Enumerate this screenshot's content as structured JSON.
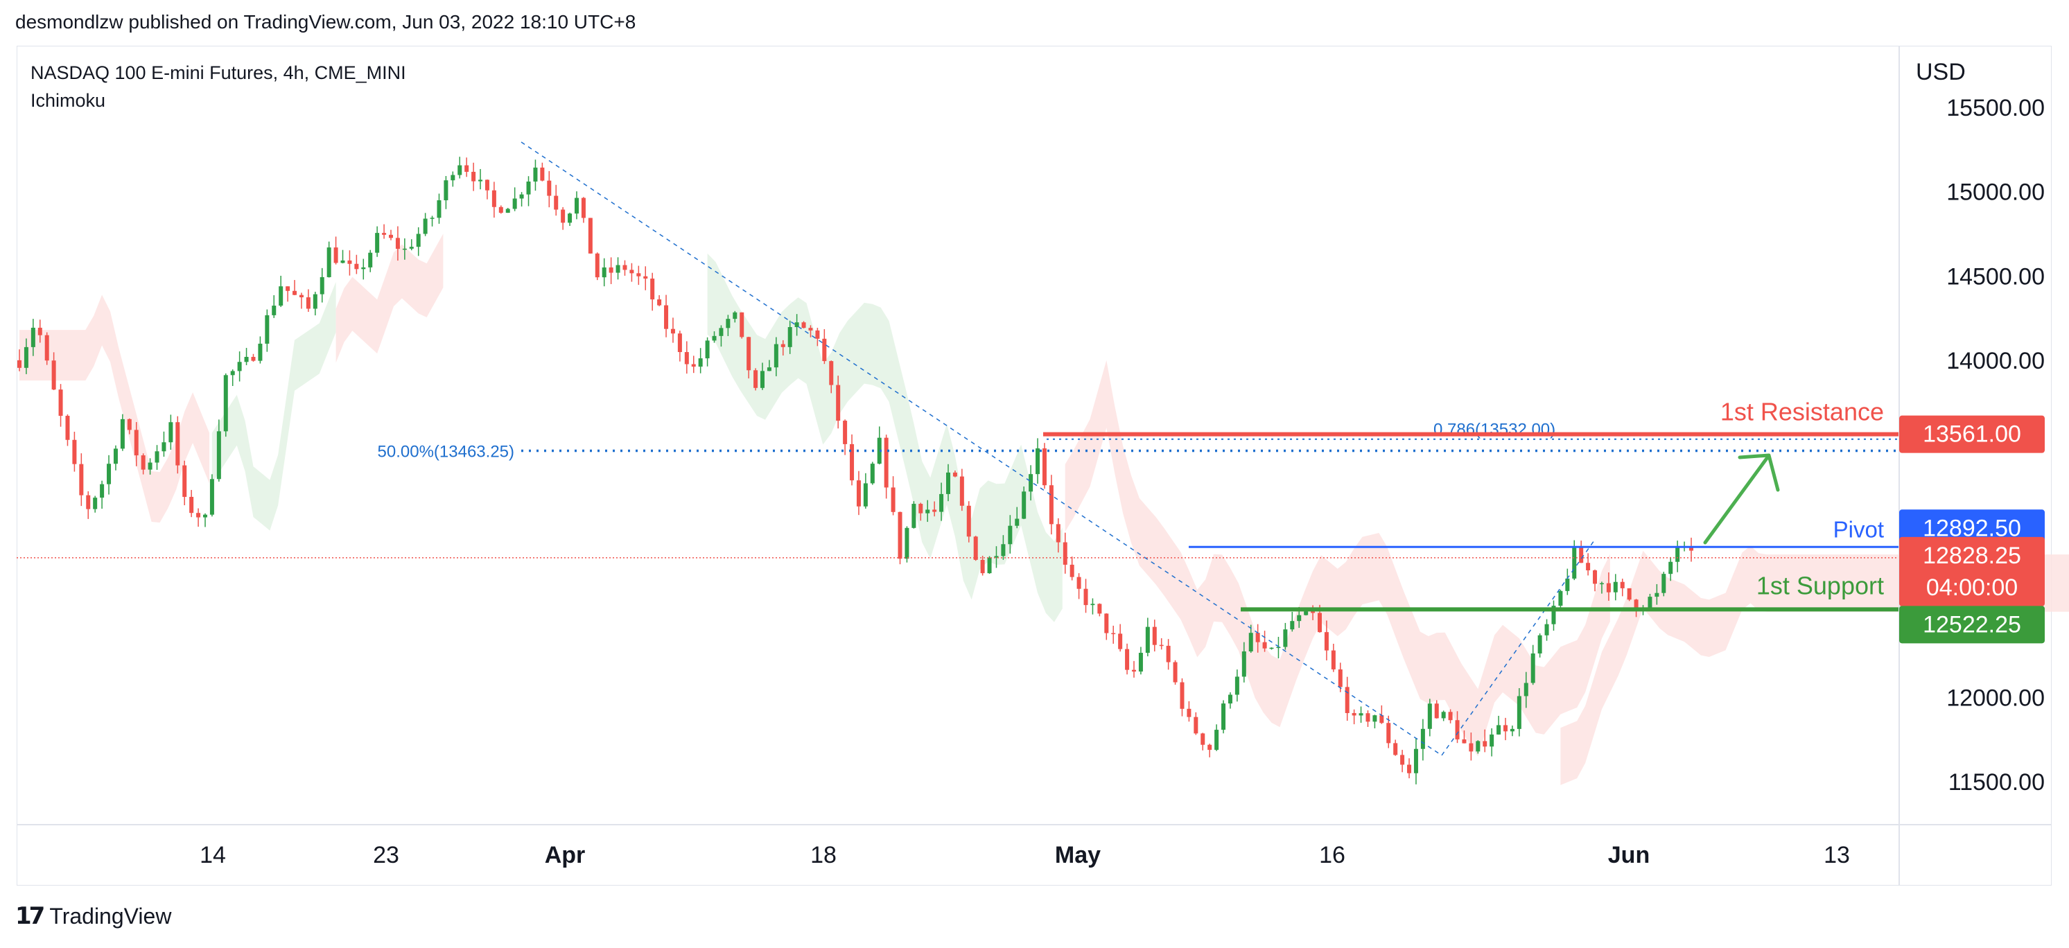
{
  "header": {
    "publish_info": "desmondlzw published on TradingView.com, Jun 03, 2022 18:10 UTC+8"
  },
  "brand": {
    "logo_glyph": "17",
    "name": "TradingView"
  },
  "colors": {
    "up": "#2e9e47",
    "down": "#f0524b",
    "resistance": "#f0524b",
    "support": "#3b9b3b",
    "pivot": "#2962ff",
    "fib": "#1f6fce",
    "cloud_bull": "#e3f2e4",
    "cloud_bear": "#fde3e2",
    "price_tag": "#f0524b",
    "pivot_tag": "#2962ff",
    "support_tag": "#3b9b3b"
  },
  "chart_data": {
    "type": "candlestick",
    "symbol_title": "NASDAQ 100 E-mini Futures, 4h, CME_MINI",
    "indicator": "Ichimoku",
    "currency": "USD",
    "y_ticks": [
      "15500.00",
      "15000.00",
      "14500.00",
      "14000.00",
      "12000.00",
      "11500.00"
    ],
    "ylim": [
      11250,
      15650
    ],
    "x_ticks": [
      {
        "label": "14",
        "bold": false
      },
      {
        "label": "23",
        "bold": false
      },
      {
        "label": "Apr",
        "bold": true
      },
      {
        "label": "18",
        "bold": false
      },
      {
        "label": "May",
        "bold": true
      },
      {
        "label": "16",
        "bold": false
      },
      {
        "label": "Jun",
        "bold": true
      },
      {
        "label": "13",
        "bold": false
      }
    ],
    "levels": {
      "resistance": {
        "label": "1st Resistance",
        "value": 13561.0,
        "tag": "13561.00"
      },
      "pivot": {
        "label": "Pivot",
        "value": 12892.5,
        "tag": "12892.50"
      },
      "support": {
        "label": "1st Support",
        "value": 12522.25,
        "tag": "12522.25"
      }
    },
    "current_price": {
      "value": 12828.25,
      "tag": "12828.25",
      "countdown": "04:00:00"
    },
    "fib_levels": [
      {
        "label": "50.00%(13463.25)",
        "value": 13463.25
      },
      {
        "label": "0.786(13532.00)",
        "value": 13532.0
      }
    ],
    "path": [
      {
        "t": 0,
        "p": 14000
      },
      {
        "t": 12,
        "p": 14250
      },
      {
        "t": 22,
        "p": 13900
      },
      {
        "t": 35,
        "p": 13500
      },
      {
        "t": 48,
        "p": 13100
      },
      {
        "t": 62,
        "p": 13300
      },
      {
        "t": 75,
        "p": 13650
      },
      {
        "t": 90,
        "p": 13350
      },
      {
        "t": 110,
        "p": 13600
      },
      {
        "t": 120,
        "p": 13150
      },
      {
        "t": 135,
        "p": 13050
      },
      {
        "t": 150,
        "p": 13900
      },
      {
        "t": 168,
        "p": 14000
      },
      {
        "t": 190,
        "p": 14450
      },
      {
        "t": 210,
        "p": 14300
      },
      {
        "t": 225,
        "p": 14650
      },
      {
        "t": 245,
        "p": 14500
      },
      {
        "t": 262,
        "p": 14750
      },
      {
        "t": 280,
        "p": 14650
      },
      {
        "t": 300,
        "p": 14850
      },
      {
        "t": 318,
        "p": 15200
      },
      {
        "t": 330,
        "p": 15100
      },
      {
        "t": 345,
        "p": 14900
      },
      {
        "t": 360,
        "p": 14950
      },
      {
        "t": 375,
        "p": 15150
      },
      {
        "t": 385,
        "p": 15000
      },
      {
        "t": 395,
        "p": 14850
      },
      {
        "t": 405,
        "p": 14950
      },
      {
        "t": 420,
        "p": 14500
      },
      {
        "t": 440,
        "p": 14550
      },
      {
        "t": 455,
        "p": 14450
      },
      {
        "t": 470,
        "p": 14200
      },
      {
        "t": 490,
        "p": 13950
      },
      {
        "t": 505,
        "p": 14150
      },
      {
        "t": 520,
        "p": 14250
      },
      {
        "t": 535,
        "p": 13800
      },
      {
        "t": 548,
        "p": 14050
      },
      {
        "t": 565,
        "p": 14200
      },
      {
        "t": 580,
        "p": 14150
      },
      {
        "t": 598,
        "p": 13550
      },
      {
        "t": 610,
        "p": 13100
      },
      {
        "t": 625,
        "p": 13500
      },
      {
        "t": 640,
        "p": 12850
      },
      {
        "t": 650,
        "p": 13150
      },
      {
        "t": 665,
        "p": 13100
      },
      {
        "t": 678,
        "p": 13350
      },
      {
        "t": 690,
        "p": 12950
      },
      {
        "t": 700,
        "p": 12750
      },
      {
        "t": 715,
        "p": 12950
      },
      {
        "t": 728,
        "p": 13150
      },
      {
        "t": 740,
        "p": 13500
      },
      {
        "t": 750,
        "p": 13050
      },
      {
        "t": 762,
        "p": 12700
      },
      {
        "t": 778,
        "p": 12550
      },
      {
        "t": 795,
        "p": 12350
      },
      {
        "t": 808,
        "p": 12100
      },
      {
        "t": 820,
        "p": 12400
      },
      {
        "t": 835,
        "p": 12200
      },
      {
        "t": 850,
        "p": 11850
      },
      {
        "t": 865,
        "p": 11700
      },
      {
        "t": 880,
        "p": 12050
      },
      {
        "t": 895,
        "p": 12350
      },
      {
        "t": 910,
        "p": 12250
      },
      {
        "t": 925,
        "p": 12450
      },
      {
        "t": 940,
        "p": 12480
      },
      {
        "t": 955,
        "p": 12150
      },
      {
        "t": 970,
        "p": 11850
      },
      {
        "t": 985,
        "p": 11900
      },
      {
        "t": 998,
        "p": 11700
      },
      {
        "t": 1010,
        "p": 11550
      },
      {
        "t": 1025,
        "p": 11950
      },
      {
        "t": 1040,
        "p": 11850
      },
      {
        "t": 1055,
        "p": 11650
      },
      {
        "t": 1070,
        "p": 11800
      },
      {
        "t": 1085,
        "p": 11850
      },
      {
        "t": 1100,
        "p": 12250
      },
      {
        "t": 1115,
        "p": 12500
      },
      {
        "t": 1130,
        "p": 12850
      },
      {
        "t": 1145,
        "p": 12700
      },
      {
        "t": 1160,
        "p": 12650
      },
      {
        "t": 1175,
        "p": 12550
      },
      {
        "t": 1190,
        "p": 12600
      },
      {
        "t": 1205,
        "p": 12900
      },
      {
        "t": 1215,
        "p": 12828
      }
    ]
  }
}
